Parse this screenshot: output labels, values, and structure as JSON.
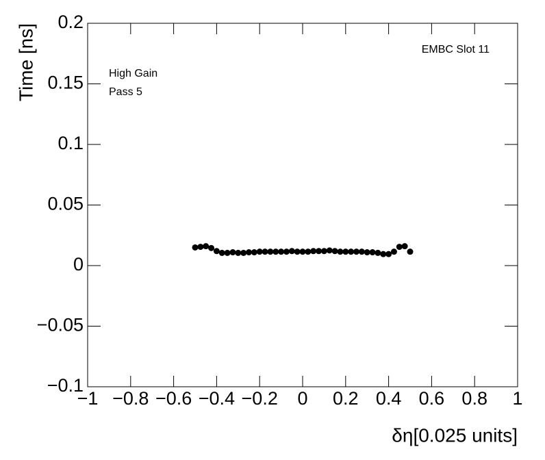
{
  "chart_data": {
    "type": "scatter",
    "x_label": "δη[0.025 units]",
    "y_label": "Time [ns]",
    "annotations": [
      "EMBC Slot 11",
      "High Gain",
      "Pass 5"
    ],
    "x": [
      -0.5,
      -0.475,
      -0.45,
      -0.425,
      -0.4,
      -0.375,
      -0.35,
      -0.325,
      -0.3,
      -0.275,
      -0.25,
      -0.225,
      -0.2,
      -0.175,
      -0.15,
      -0.125,
      -0.1,
      -0.075,
      -0.05,
      -0.025,
      0,
      0.025,
      0.05,
      0.075,
      0.1,
      0.125,
      0.15,
      0.175,
      0.2,
      0.225,
      0.25,
      0.275,
      0.3,
      0.325,
      0.35,
      0.375,
      0.4,
      0.425,
      0.45,
      0.475,
      0.5
    ],
    "values": [
      0.015,
      0.0155,
      0.016,
      0.0145,
      0.012,
      0.0105,
      0.0105,
      0.011,
      0.0105,
      0.0105,
      0.011,
      0.011,
      0.0115,
      0.0115,
      0.0115,
      0.0115,
      0.0115,
      0.0115,
      0.012,
      0.0115,
      0.0115,
      0.0115,
      0.012,
      0.012,
      0.012,
      0.0125,
      0.012,
      0.0115,
      0.0115,
      0.0115,
      0.0115,
      0.0115,
      0.011,
      0.011,
      0.0105,
      0.0095,
      0.0095,
      0.0115,
      0.0155,
      0.016,
      0.0115
    ],
    "color": "#000000",
    "xlim": [
      -1,
      1
    ],
    "xticks": [
      {
        "value": -1,
        "label": "−1"
      },
      {
        "value": -0.8,
        "label": "−0.8"
      },
      {
        "value": -0.6,
        "label": "−0.6"
      },
      {
        "value": -0.4,
        "label": "−0.4"
      },
      {
        "value": -0.2,
        "label": "−0.2"
      },
      0,
      0.2,
      0.4,
      0.6,
      0.8,
      1
    ],
    "ylim": [
      -0.1,
      0.2
    ],
    "yticks": [
      {
        "value": -0.1,
        "label": "−0.1"
      },
      {
        "value": -0.05,
        "label": "−0.05"
      },
      0,
      0.05,
      0.1,
      0.15,
      0.2
    ],
    "grid": false
  }
}
